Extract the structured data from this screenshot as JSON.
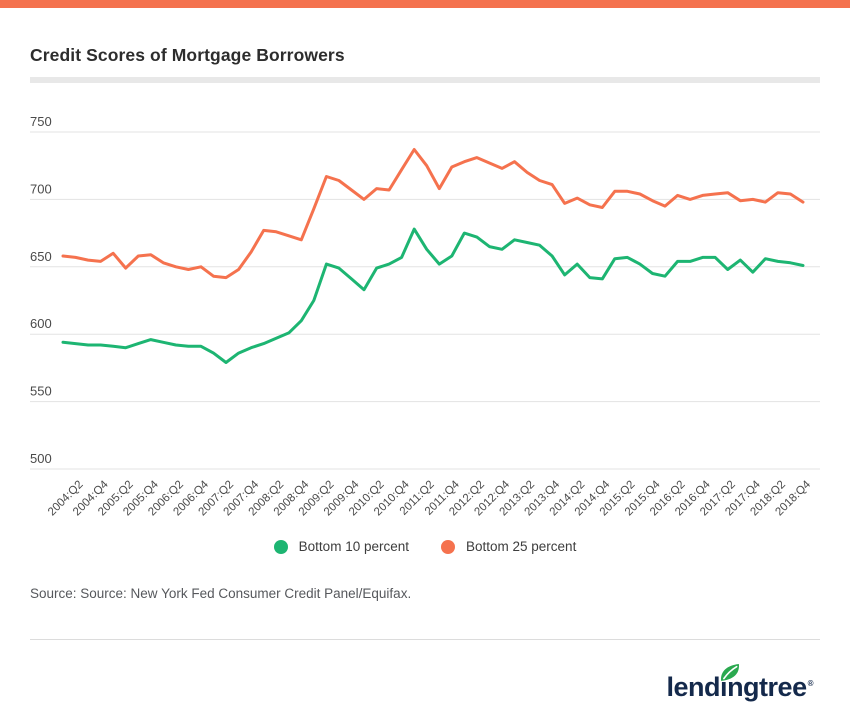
{
  "page": {
    "top_bar_color": "#f4724e",
    "title": "Credit Scores of Mortgage Borrowers"
  },
  "chart_data": {
    "type": "line",
    "title": "Credit Scores of Mortgage Borrowers",
    "xlabel": "",
    "ylabel": "",
    "grid": true,
    "legend_position": "bottom",
    "ylim": [
      500,
      750
    ],
    "yticks": [
      750,
      700,
      650,
      600,
      550,
      500
    ],
    "categories": [
      "2004:Q1",
      "2004:Q2",
      "2004:Q3",
      "2004:Q4",
      "2005:Q1",
      "2005:Q2",
      "2005:Q3",
      "2005:Q4",
      "2006:Q1",
      "2006:Q2",
      "2006:Q3",
      "2006:Q4",
      "2007:Q1",
      "2007:Q2",
      "2007:Q3",
      "2007:Q4",
      "2008:Q1",
      "2008:Q2",
      "2008:Q3",
      "2008:Q4",
      "2009:Q1",
      "2009:Q2",
      "2009:Q3",
      "2009:Q4",
      "2010:Q1",
      "2010:Q2",
      "2010:Q3",
      "2010:Q4",
      "2011:Q1",
      "2011:Q2",
      "2011:Q3",
      "2011:Q4",
      "2012:Q1",
      "2012:Q2",
      "2012:Q3",
      "2012:Q4",
      "2013:Q1",
      "2013:Q2",
      "2013:Q3",
      "2013:Q4",
      "2014:Q1",
      "2014:Q2",
      "2014:Q3",
      "2014:Q4",
      "2015:Q1",
      "2015:Q2",
      "2015:Q3",
      "2015:Q4",
      "2016:Q1",
      "2016:Q2",
      "2016:Q3",
      "2016:Q4",
      "2017:Q1",
      "2017:Q2",
      "2017:Q3",
      "2017:Q4",
      "2018:Q1",
      "2018:Q2",
      "2018:Q3",
      "2018:Q4"
    ],
    "x_tick_labels": [
      "2004:Q2",
      "2004:Q4",
      "2005:Q2",
      "2005:Q4",
      "2006:Q2",
      "2006:Q4",
      "2007:Q2",
      "2007:Q4",
      "2008:Q2",
      "2008:Q4",
      "2009:Q2",
      "2009:Q4",
      "2010:Q2",
      "2010:Q4",
      "2011:Q2",
      "2011:Q4",
      "2012:Q2",
      "2012:Q4",
      "2013:Q2",
      "2013:Q4",
      "2014:Q2",
      "2014:Q4",
      "2015:Q2",
      "2015:Q4",
      "2016:Q2",
      "2016:Q4",
      "2017:Q2",
      "2017:Q4",
      "2018:Q2",
      "2018:Q4"
    ],
    "series": [
      {
        "name": "Bottom 10 percent",
        "color": "#1db572",
        "values": [
          594,
          593,
          592,
          592,
          591,
          590,
          593,
          596,
          594,
          592,
          591,
          591,
          586,
          579,
          586,
          590,
          593,
          597,
          601,
          610,
          625,
          652,
          649,
          641,
          633,
          649,
          652,
          657,
          678,
          663,
          652,
          658,
          675,
          672,
          665,
          663,
          670,
          668,
          666,
          658,
          644,
          652,
          642,
          641,
          656,
          657,
          652,
          645,
          643,
          654,
          654,
          657,
          657,
          648,
          655,
          646,
          656,
          654,
          653,
          651
        ]
      },
      {
        "name": "Bottom 25 percent",
        "color": "#f5724e",
        "values": [
          658,
          657,
          655,
          654,
          660,
          649,
          658,
          659,
          653,
          650,
          648,
          650,
          643,
          642,
          648,
          661,
          677,
          676,
          673,
          670,
          693,
          717,
          714,
          707,
          700,
          708,
          707,
          722,
          737,
          725,
          708,
          724,
          728,
          731,
          727,
          723,
          728,
          720,
          714,
          711,
          697,
          701,
          696,
          694,
          706,
          706,
          704,
          699,
          695,
          703,
          700,
          703,
          704,
          705,
          699,
          700,
          698,
          705,
          704,
          698
        ]
      }
    ]
  },
  "footer": {
    "source": "Source: Source: New York Fed Consumer Credit Panel/Equifax."
  },
  "logo": {
    "brand_prefix": "lend",
    "brand_i": "ı",
    "brand_suffix": "ngtree",
    "registered_mark": "®",
    "navy": "#14294b",
    "leaf_green": "#2aa94f"
  }
}
